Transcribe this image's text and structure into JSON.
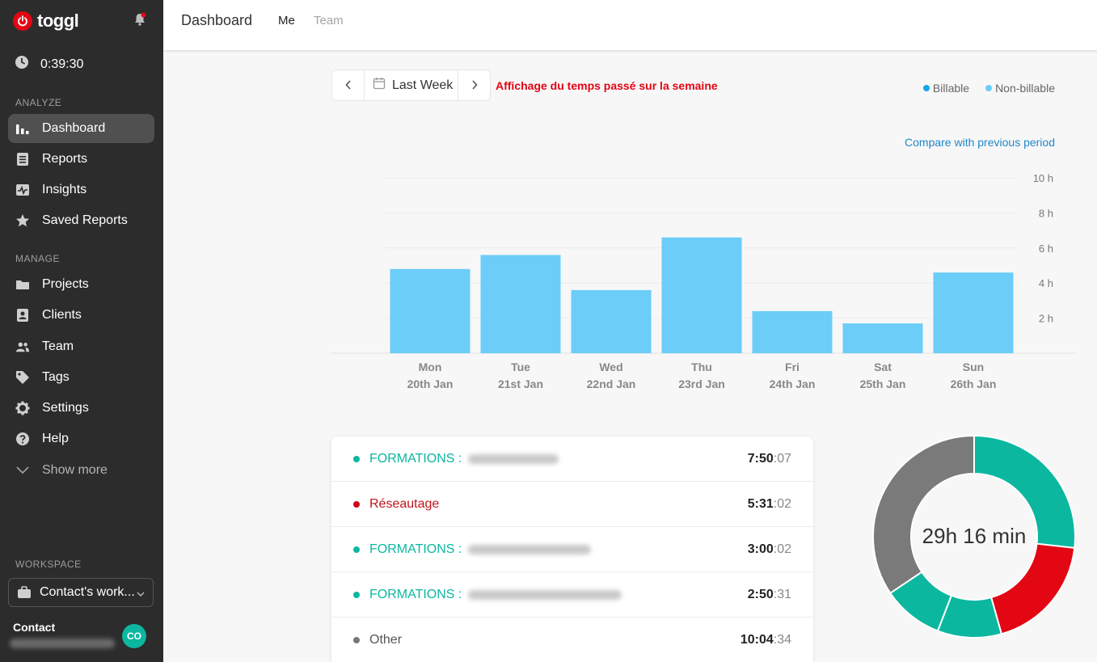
{
  "app": {
    "name": "toggl"
  },
  "sidebar": {
    "timer": "0:39:30",
    "analyze_label": "ANALYZE",
    "analyze_items": [
      {
        "label": "Dashboard",
        "icon": "bar-chart-icon",
        "active": true
      },
      {
        "label": "Reports",
        "icon": "document-icon"
      },
      {
        "label": "Insights",
        "icon": "pulse-icon"
      },
      {
        "label": "Saved Reports",
        "icon": "star-icon"
      }
    ],
    "manage_label": "MANAGE",
    "manage_items": [
      {
        "label": "Projects",
        "icon": "folder-icon"
      },
      {
        "label": "Clients",
        "icon": "client-card-icon"
      },
      {
        "label": "Team",
        "icon": "team-icon"
      },
      {
        "label": "Tags",
        "icon": "tag-icon"
      },
      {
        "label": "Settings",
        "icon": "gear-icon"
      },
      {
        "label": "Help",
        "icon": "help-icon"
      },
      {
        "label": "Show more",
        "icon": "chevron-down-icon"
      }
    ],
    "workspace_label": "WORKSPACE",
    "workspace": "Contact's work...",
    "user": {
      "name": "Contact",
      "initials": "CO"
    }
  },
  "header": {
    "title": "Dashboard",
    "tabs": [
      "Me",
      "Team"
    ]
  },
  "date_range": {
    "label": "Last Week"
  },
  "annotation": "Affichage du temps passé sur la semaine",
  "legend": [
    {
      "label": "Billable",
      "color": "#16a5e8"
    },
    {
      "label": "Non-billable",
      "color": "#6bcdf8"
    }
  ],
  "compare_link": "Compare with previous period",
  "chart_data": {
    "type": "bar",
    "categories": [
      "Mon",
      "Tue",
      "Wed",
      "Thu",
      "Fri",
      "Sat",
      "Sun"
    ],
    "subcategories": [
      "20th Jan",
      "21st Jan",
      "22nd Jan",
      "23rd Jan",
      "24th Jan",
      "25th Jan",
      "26th Jan"
    ],
    "series": [
      {
        "name": "Non-billable",
        "values": [
          4.8,
          5.6,
          3.6,
          6.6,
          2.4,
          1.7,
          4.6
        ],
        "color": "#6bcdf8"
      }
    ],
    "y_ticks": [
      "2 h",
      "4 h",
      "6 h",
      "8 h",
      "10 h"
    ],
    "ylim": [
      0,
      10
    ],
    "grid": true
  },
  "entries": [
    {
      "project": "FORMATIONS :",
      "color": "#0cb7a0",
      "duration_h": "7:50",
      "duration_s": ":07"
    },
    {
      "project": "Réseautage",
      "color": "#d0021b",
      "duration_h": "5:31",
      "duration_s": ":02"
    },
    {
      "project": "FORMATIONS :",
      "color": "#0cb7a0",
      "duration_h": "3:00",
      "duration_s": ":02"
    },
    {
      "project": "FORMATIONS :",
      "color": "#0cb7a0",
      "duration_h": "2:50",
      "duration_s": ":31"
    },
    {
      "project": "Other",
      "color": "#777777",
      "duration_h": "10:04",
      "duration_s": ":34"
    }
  ],
  "donut": {
    "total": "29h 16 min",
    "segments": [
      {
        "label": "FORMATIONS",
        "hours": 7.84,
        "color": "#0cb7a0"
      },
      {
        "label": "Réseautage",
        "hours": 5.52,
        "color": "#e30613"
      },
      {
        "label": "FORMATIONS",
        "hours": 3.0,
        "color": "#0cb7a0"
      },
      {
        "label": "FORMATIONS",
        "hours": 2.84,
        "color": "#0cb7a0"
      },
      {
        "label": "Other",
        "hours": 10.08,
        "color": "#7a7a7a"
      }
    ]
  }
}
